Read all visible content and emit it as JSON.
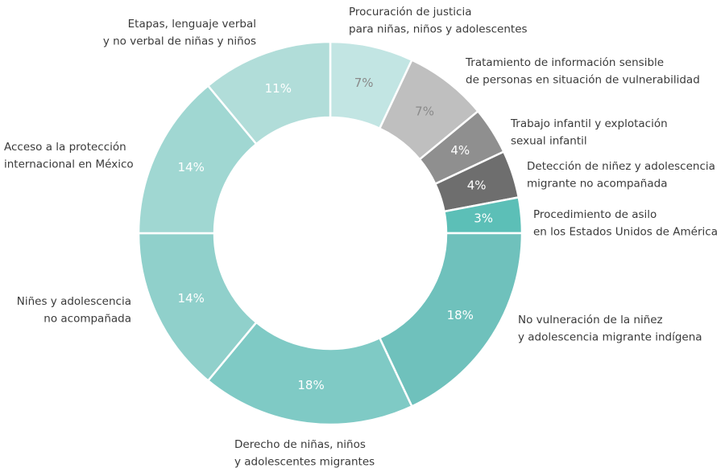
{
  "chart_data": {
    "type": "donut",
    "categories": [
      [
        "Procuración de justicia",
        "para niñas, niños y adolescentes"
      ],
      [
        "Tratamiento de información sensible",
        "de personas en situación de vulnerabilidad"
      ],
      [
        "Trabajo infantil y explotación",
        "sexual infantil"
      ],
      [
        "Detección de niñez y adolescencia",
        "migrante no acompañada"
      ],
      [
        "Procedimiento de asilo",
        "en los Estados Unidos de América"
      ],
      [
        "No vulneración de la niñez",
        "y adolescencia migrante indígena"
      ],
      [
        "Derecho de niñas, niños",
        "y adolescentes migrantes"
      ],
      [
        "Niñes y adolescencia",
        "no acompañada"
      ],
      [
        "Acceso a la protección",
        "internacional en México"
      ],
      [
        "Etapas, lenguaje verbal",
        "y no verbal de niñas y niños"
      ]
    ],
    "values": [
      7,
      7,
      4,
      4,
      3,
      18,
      18,
      14,
      14,
      11
    ],
    "value_labels": [
      "7%",
      "7%",
      "4%",
      "4%",
      "3%",
      "18%",
      "18%",
      "14%",
      "14%",
      "11%"
    ],
    "colors": [
      "#c2e5e3",
      "#bfbfbf",
      "#8f8f8f",
      "#6e6e6e",
      "#5cbfb7",
      "#6fc1bc",
      "#7fcac5",
      "#90d0cb",
      "#a0d7d2",
      "#b1ddd9"
    ],
    "label_colors": [
      "#8a8a8a",
      "#8a8a8a",
      "#ffffff",
      "#ffffff",
      "#ffffff",
      "#ffffff",
      "#ffffff",
      "#ffffff",
      "#ffffff",
      "#ffffff"
    ]
  }
}
